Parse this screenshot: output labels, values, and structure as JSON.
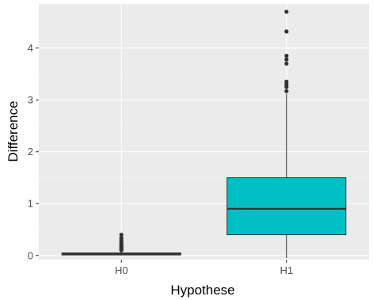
{
  "chart_data": {
    "type": "box",
    "xlabel": "Hypothese",
    "ylabel": "Difference",
    "categories": [
      "H0",
      "H1"
    ],
    "ylim": [
      -0.08,
      4.85
    ],
    "y_ticks": [
      0,
      1,
      2,
      3,
      4
    ],
    "y_tick_labels": [
      "0",
      "1",
      "2",
      "3",
      "4"
    ],
    "grid": true,
    "legend": "none",
    "boxes": [
      {
        "category": "H0",
        "fill": "#F8766D",
        "whisker_low": 0.0,
        "q1": 0.01,
        "median": 0.03,
        "q3": 0.05,
        "whisker_high": 0.08,
        "outliers": [
          0.1,
          0.12,
          0.14,
          0.16,
          0.18,
          0.2,
          0.23,
          0.26,
          0.3,
          0.34,
          0.4
        ]
      },
      {
        "category": "H1",
        "fill": "#00BFC4",
        "whisker_low": -0.05,
        "q1": 0.4,
        "median": 0.9,
        "q3": 1.5,
        "whisker_high": 3.12,
        "outliers": [
          3.17,
          3.25,
          3.3,
          3.35,
          3.7,
          3.78,
          3.85,
          4.32,
          4.7
        ]
      }
    ],
    "colors": {
      "panel_background": "#EBEBEB",
      "grid_major": "#FFFFFF",
      "grid_minor": "#F5F5F5",
      "outline": "#333333",
      "h1_fill": "#00BFC4"
    }
  }
}
